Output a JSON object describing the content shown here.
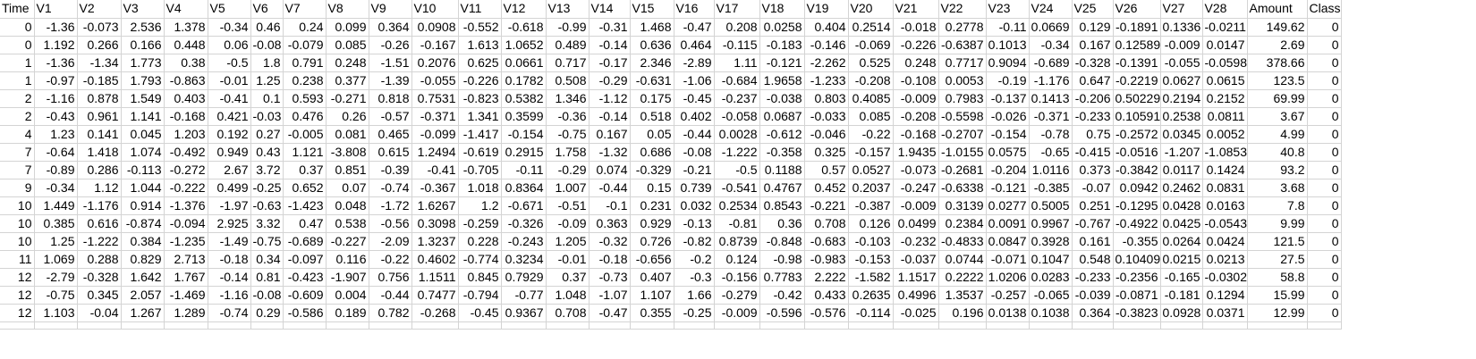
{
  "sheet": {
    "headers": [
      "Time",
      "V1",
      "V2",
      "V3",
      "V4",
      "V5",
      "V6",
      "V7",
      "V8",
      "V9",
      "V10",
      "V11",
      "V12",
      "V13",
      "V14",
      "V15",
      "V16",
      "V17",
      "V18",
      "V19",
      "V20",
      "V21",
      "V22",
      "V23",
      "V24",
      "V25",
      "V26",
      "V27",
      "V28",
      "Amount",
      "Class"
    ],
    "rows": [
      [
        "0",
        "-1.36",
        "-0.073",
        "2.536",
        "1.378",
        "-0.34",
        "0.46",
        "0.24",
        "0.099",
        "0.364",
        "0.0908",
        "-0.552",
        "-0.618",
        "-0.99",
        "-0.31",
        "1.468",
        "-0.47",
        "0.208",
        "0.0258",
        "0.404",
        "0.2514",
        "-0.018",
        "0.2778",
        "-0.11",
        "0.0669",
        "0.129",
        "-0.1891",
        "0.1336",
        "-0.0211",
        "149.62",
        "0"
      ],
      [
        "0",
        "1.192",
        "0.266",
        "0.166",
        "0.448",
        "0.06",
        "-0.08",
        "-0.079",
        "0.085",
        "-0.26",
        "-0.167",
        "1.613",
        "1.0652",
        "0.489",
        "-0.14",
        "0.636",
        "0.464",
        "-0.115",
        "-0.183",
        "-0.146",
        "-0.069",
        "-0.226",
        "-0.6387",
        "0.1013",
        "-0.34",
        "0.167",
        "0.12589",
        "-0.009",
        "0.0147",
        "2.69",
        "0"
      ],
      [
        "1",
        "-1.36",
        "-1.34",
        "1.773",
        "0.38",
        "-0.5",
        "1.8",
        "0.791",
        "0.248",
        "-1.51",
        "0.2076",
        "0.625",
        "0.0661",
        "0.717",
        "-0.17",
        "2.346",
        "-2.89",
        "1.11",
        "-0.121",
        "-2.262",
        "0.525",
        "0.248",
        "0.7717",
        "0.9094",
        "-0.689",
        "-0.328",
        "-0.1391",
        "-0.055",
        "-0.0598",
        "378.66",
        "0"
      ],
      [
        "1",
        "-0.97",
        "-0.185",
        "1.793",
        "-0.863",
        "-0.01",
        "1.25",
        "0.238",
        "0.377",
        "-1.39",
        "-0.055",
        "-0.226",
        "0.1782",
        "0.508",
        "-0.29",
        "-0.631",
        "-1.06",
        "-0.684",
        "1.9658",
        "-1.233",
        "-0.208",
        "-0.108",
        "0.0053",
        "-0.19",
        "-1.176",
        "0.647",
        "-0.2219",
        "0.0627",
        "0.0615",
        "123.5",
        "0"
      ],
      [
        "2",
        "-1.16",
        "0.878",
        "1.549",
        "0.403",
        "-0.41",
        "0.1",
        "0.593",
        "-0.271",
        "0.818",
        "0.7531",
        "-0.823",
        "0.5382",
        "1.346",
        "-1.12",
        "0.175",
        "-0.45",
        "-0.237",
        "-0.038",
        "0.803",
        "0.4085",
        "-0.009",
        "0.7983",
        "-0.137",
        "0.1413",
        "-0.206",
        "0.50229",
        "0.2194",
        "0.2152",
        "69.99",
        "0"
      ],
      [
        "2",
        "-0.43",
        "0.961",
        "1.141",
        "-0.168",
        "0.421",
        "-0.03",
        "0.476",
        "0.26",
        "-0.57",
        "-0.371",
        "1.341",
        "0.3599",
        "-0.36",
        "-0.14",
        "0.518",
        "0.402",
        "-0.058",
        "0.0687",
        "-0.033",
        "0.085",
        "-0.208",
        "-0.5598",
        "-0.026",
        "-0.371",
        "-0.233",
        "0.10591",
        "0.2538",
        "0.0811",
        "3.67",
        "0"
      ],
      [
        "4",
        "1.23",
        "0.141",
        "0.045",
        "1.203",
        "0.192",
        "0.27",
        "-0.005",
        "0.081",
        "0.465",
        "-0.099",
        "-1.417",
        "-0.154",
        "-0.75",
        "0.167",
        "0.05",
        "-0.44",
        "0.0028",
        "-0.612",
        "-0.046",
        "-0.22",
        "-0.168",
        "-0.2707",
        "-0.154",
        "-0.78",
        "0.75",
        "-0.2572",
        "0.0345",
        "0.0052",
        "4.99",
        "0"
      ],
      [
        "7",
        "-0.64",
        "1.418",
        "1.074",
        "-0.492",
        "0.949",
        "0.43",
        "1.121",
        "-3.808",
        "0.615",
        "1.2494",
        "-0.619",
        "0.2915",
        "1.758",
        "-1.32",
        "0.686",
        "-0.08",
        "-1.222",
        "-0.358",
        "0.325",
        "-0.157",
        "1.9435",
        "-1.0155",
        "0.0575",
        "-0.65",
        "-0.415",
        "-0.0516",
        "-1.207",
        "-1.0853",
        "40.8",
        "0"
      ],
      [
        "7",
        "-0.89",
        "0.286",
        "-0.113",
        "-0.272",
        "2.67",
        "3.72",
        "0.37",
        "0.851",
        "-0.39",
        "-0.41",
        "-0.705",
        "-0.11",
        "-0.29",
        "0.074",
        "-0.329",
        "-0.21",
        "-0.5",
        "0.1188",
        "0.57",
        "0.0527",
        "-0.073",
        "-0.2681",
        "-0.204",
        "1.0116",
        "0.373",
        "-0.3842",
        "0.0117",
        "0.1424",
        "93.2",
        "0"
      ],
      [
        "9",
        "-0.34",
        "1.12",
        "1.044",
        "-0.222",
        "0.499",
        "-0.25",
        "0.652",
        "0.07",
        "-0.74",
        "-0.367",
        "1.018",
        "0.8364",
        "1.007",
        "-0.44",
        "0.15",
        "0.739",
        "-0.541",
        "0.4767",
        "0.452",
        "0.2037",
        "-0.247",
        "-0.6338",
        "-0.121",
        "-0.385",
        "-0.07",
        "0.0942",
        "0.2462",
        "0.0831",
        "3.68",
        "0"
      ],
      [
        "10",
        "1.449",
        "-1.176",
        "0.914",
        "-1.376",
        "-1.97",
        "-0.63",
        "-1.423",
        "0.048",
        "-1.72",
        "1.6267",
        "1.2",
        "-0.671",
        "-0.51",
        "-0.1",
        "0.231",
        "0.032",
        "0.2534",
        "0.8543",
        "-0.221",
        "-0.387",
        "-0.009",
        "0.3139",
        "0.0277",
        "0.5005",
        "0.251",
        "-0.1295",
        "0.0428",
        "0.0163",
        "7.8",
        "0"
      ],
      [
        "10",
        "0.385",
        "0.616",
        "-0.874",
        "-0.094",
        "2.925",
        "3.32",
        "0.47",
        "0.538",
        "-0.56",
        "0.3098",
        "-0.259",
        "-0.326",
        "-0.09",
        "0.363",
        "0.929",
        "-0.13",
        "-0.81",
        "0.36",
        "0.708",
        "0.126",
        "0.0499",
        "0.2384",
        "0.0091",
        "0.9967",
        "-0.767",
        "-0.4922",
        "0.0425",
        "-0.0543",
        "9.99",
        "0"
      ],
      [
        "10",
        "1.25",
        "-1.222",
        "0.384",
        "-1.235",
        "-1.49",
        "-0.75",
        "-0.689",
        "-0.227",
        "-2.09",
        "1.3237",
        "0.228",
        "-0.243",
        "1.205",
        "-0.32",
        "0.726",
        "-0.82",
        "0.8739",
        "-0.848",
        "-0.683",
        "-0.103",
        "-0.232",
        "-0.4833",
        "0.0847",
        "0.3928",
        "0.161",
        "-0.355",
        "0.0264",
        "0.0424",
        "121.5",
        "0"
      ],
      [
        "11",
        "1.069",
        "0.288",
        "0.829",
        "2.713",
        "-0.18",
        "0.34",
        "-0.097",
        "0.116",
        "-0.22",
        "0.4602",
        "-0.774",
        "0.3234",
        "-0.01",
        "-0.18",
        "-0.656",
        "-0.2",
        "0.124",
        "-0.98",
        "-0.983",
        "-0.153",
        "-0.037",
        "0.0744",
        "-0.071",
        "0.1047",
        "0.548",
        "0.10409",
        "0.0215",
        "0.0213",
        "27.5",
        "0"
      ],
      [
        "12",
        "-2.79",
        "-0.328",
        "1.642",
        "1.767",
        "-0.14",
        "0.81",
        "-0.423",
        "-1.907",
        "0.756",
        "1.1511",
        "0.845",
        "0.7929",
        "0.37",
        "-0.73",
        "0.407",
        "-0.3",
        "-0.156",
        "0.7783",
        "2.222",
        "-1.582",
        "1.1517",
        "0.2222",
        "1.0206",
        "0.0283",
        "-0.233",
        "-0.2356",
        "-0.165",
        "-0.0302",
        "58.8",
        "0"
      ],
      [
        "12",
        "-0.75",
        "0.345",
        "2.057",
        "-1.469",
        "-1.16",
        "-0.08",
        "-0.609",
        "0.004",
        "-0.44",
        "0.7477",
        "-0.794",
        "-0.77",
        "1.048",
        "-1.07",
        "1.107",
        "1.66",
        "-0.279",
        "-0.42",
        "0.433",
        "0.2635",
        "0.4996",
        "1.3537",
        "-0.257",
        "-0.065",
        "-0.039",
        "-0.0871",
        "-0.181",
        "0.1294",
        "15.99",
        "0"
      ],
      [
        "12",
        "1.103",
        "-0.04",
        "1.267",
        "1.289",
        "-0.74",
        "0.29",
        "-0.586",
        "0.189",
        "0.782",
        "-0.268",
        "-0.45",
        "0.9367",
        "0.708",
        "-0.47",
        "0.355",
        "-0.25",
        "-0.009",
        "-0.596",
        "-0.576",
        "-0.114",
        "-0.025",
        "0.196",
        "0.0138",
        "0.1038",
        "0.364",
        "-0.3823",
        "0.0928",
        "0.0371",
        "12.99",
        "0"
      ]
    ]
  }
}
